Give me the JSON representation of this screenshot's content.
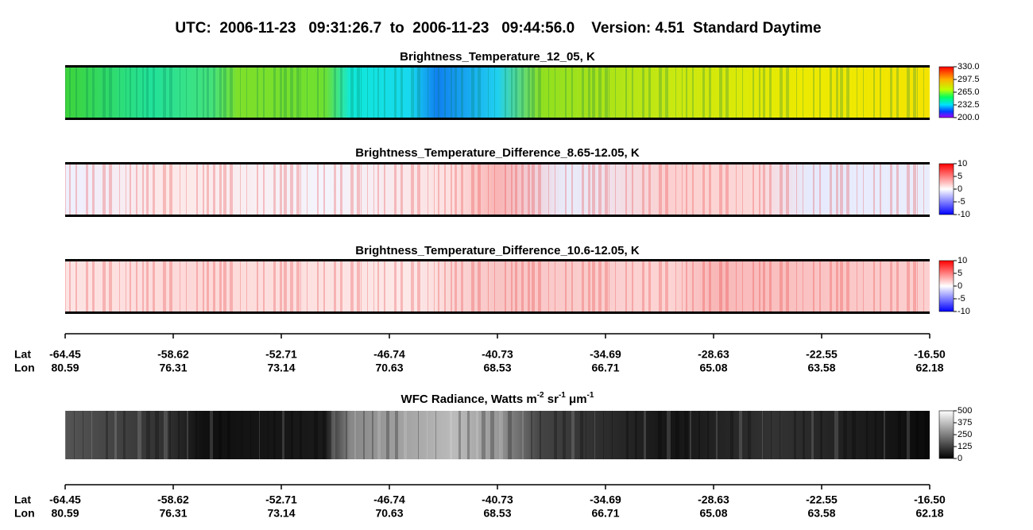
{
  "title": "UTC:  2006-11-23   09:31:26.7  to  2006-11-23   09:44:56.0    Version: 4.51  Standard Daytime",
  "panels": [
    {
      "title": "Brightness_Temperature_12_05, K",
      "colorbar": [
        "330.0",
        "297.5",
        "265.0",
        "232.5",
        "200.0"
      ]
    },
    {
      "title": "Brightness_Temperature_Difference_8.65-12.05, K",
      "colorbar": [
        "10",
        "5",
        "0",
        "-5",
        "-10"
      ]
    },
    {
      "title": "Brightness_Temperature_Difference_10.6-12.05, K",
      "colorbar": [
        "10",
        "5",
        "0",
        "-5",
        "-10"
      ]
    }
  ],
  "wfc": {
    "title": [
      "WFC Radiance, Watts m",
      "-2",
      " sr",
      "-1",
      " μm",
      "-1"
    ],
    "colorbar": [
      "500",
      "375",
      "250",
      "125",
      "0"
    ]
  },
  "axes": [
    {
      "lat_label": "Lat",
      "lon_label": "Lon",
      "lat": [
        "-64.45",
        "-58.62",
        "-52.71",
        "-46.74",
        "-40.73",
        "-34.69",
        "-28.63",
        "-22.55",
        "-16.50"
      ],
      "lon": [
        "80.59",
        "76.31",
        "73.14",
        "70.63",
        "68.53",
        "66.71",
        "65.08",
        "63.58",
        "62.18"
      ]
    },
    {
      "lat_label": "Lat",
      "lon_label": "Lon",
      "lat": [
        "-64.45",
        "-58.62",
        "-52.71",
        "-46.74",
        "-40.73",
        "-34.69",
        "-28.63",
        "-22.55",
        "-16.50"
      ],
      "lon": [
        "80.59",
        "76.31",
        "73.14",
        "70.63",
        "68.53",
        "66.71",
        "65.08",
        "63.58",
        "62.18"
      ]
    }
  ]
}
